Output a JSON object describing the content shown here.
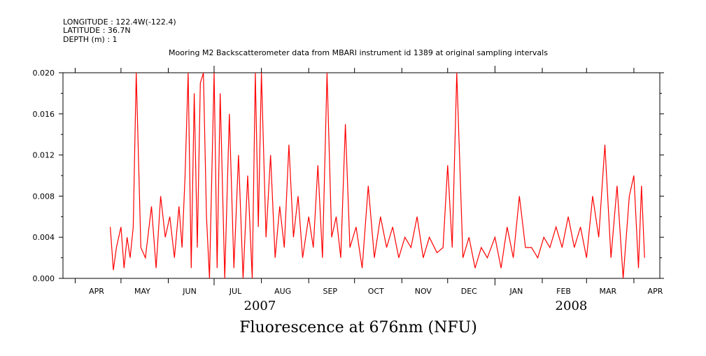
{
  "header": {
    "longitude": "LONGITUDE : 122.4W(-122.4)",
    "latitude": "LATITUDE : 36.7N",
    "depth": "DEPTH (m) : 1"
  },
  "chart_data": {
    "type": "line",
    "title": "Mooring M2 Backscatterometer data from MBARI instrument id 1389 at original sampling intervals",
    "xlabel": "Fluorescence at 676nm (NFU)",
    "ylabel": "",
    "ylim": [
      0,
      0.02
    ],
    "y_ticks": [
      "0.000",
      "0.004",
      "0.008",
      "0.012",
      "0.016",
      "0.020"
    ],
    "x_range": [
      "2007-03-24",
      "2008-04-18"
    ],
    "months": [
      "APR",
      "MAY",
      "JUN",
      "JUL",
      "AUG",
      "SEP",
      "OCT",
      "NOV",
      "DEC",
      "JAN",
      "FEB",
      "MAR",
      "APR"
    ],
    "years": [
      "2007",
      "2008"
    ],
    "grid": false,
    "legend": "none",
    "line_color": "#ff0000",
    "series": [
      {
        "x": [
          "2007-04-24",
          "2007-04-26",
          "2007-04-28",
          "2007-05-01",
          "2007-05-03",
          "2007-05-05",
          "2007-05-07",
          "2007-05-09",
          "2007-05-11",
          "2007-05-14",
          "2007-05-17",
          "2007-05-21",
          "2007-05-24",
          "2007-05-27",
          "2007-05-30",
          "2007-06-02",
          "2007-06-05",
          "2007-06-08",
          "2007-06-10",
          "2007-06-12",
          "2007-06-14",
          "2007-06-16",
          "2007-06-18",
          "2007-06-20",
          "2007-06-22",
          "2007-06-24",
          "2007-06-26",
          "2007-06-28",
          "2007-07-01",
          "2007-07-03",
          "2007-07-05",
          "2007-07-08",
          "2007-07-11",
          "2007-07-14",
          "2007-07-17",
          "2007-07-20",
          "2007-07-23",
          "2007-07-26",
          "2007-07-28",
          "2007-07-30",
          "2007-08-01",
          "2007-08-04",
          "2007-08-07",
          "2007-08-10",
          "2007-08-13",
          "2007-08-16",
          "2007-08-19",
          "2007-08-22",
          "2007-08-25",
          "2007-08-28",
          "2007-09-01",
          "2007-09-04",
          "2007-09-07",
          "2007-09-10",
          "2007-09-13",
          "2007-09-16",
          "2007-09-19",
          "2007-09-22",
          "2007-09-25",
          "2007-09-28",
          "2007-10-02",
          "2007-10-06",
          "2007-10-10",
          "2007-10-14",
          "2007-10-18",
          "2007-10-22",
          "2007-10-26",
          "2007-10-30",
          "2007-11-03",
          "2007-11-07",
          "2007-11-11",
          "2007-11-15",
          "2007-11-19",
          "2007-11-24",
          "2007-11-28",
          "2007-12-01",
          "2007-12-04",
          "2007-12-07",
          "2007-12-11",
          "2007-12-15",
          "2007-12-19",
          "2007-12-23",
          "2007-12-27",
          "2008-01-01",
          "2008-01-05",
          "2008-01-09",
          "2008-01-13",
          "2008-01-17",
          "2008-01-21",
          "2008-01-25",
          "2008-01-29",
          "2008-02-02",
          "2008-02-06",
          "2008-02-10",
          "2008-02-14",
          "2008-02-18",
          "2008-02-22",
          "2008-02-26",
          "2008-03-01",
          "2008-03-05",
          "2008-03-09",
          "2008-03-13",
          "2008-03-17",
          "2008-03-21",
          "2008-03-25",
          "2008-03-29",
          "2008-04-01",
          "2008-04-04",
          "2008-04-06",
          "2008-04-08"
        ],
        "y": [
          0.005,
          0.0008,
          0.003,
          0.005,
          0.001,
          0.004,
          0.002,
          0.005,
          0.02,
          0.003,
          0.002,
          0.007,
          0.001,
          0.008,
          0.004,
          0.006,
          0.002,
          0.007,
          0.003,
          0.01,
          0.02,
          0.001,
          0.018,
          0.003,
          0.019,
          0.02,
          0.006,
          0.0,
          0.02,
          0.001,
          0.018,
          0.0,
          0.016,
          0.001,
          0.012,
          0.0,
          0.01,
          0.0,
          0.02,
          0.005,
          0.02,
          0.004,
          0.012,
          0.002,
          0.007,
          0.003,
          0.013,
          0.004,
          0.008,
          0.002,
          0.006,
          0.003,
          0.011,
          0.002,
          0.02,
          0.004,
          0.006,
          0.002,
          0.015,
          0.003,
          0.005,
          0.001,
          0.009,
          0.002,
          0.006,
          0.003,
          0.005,
          0.002,
          0.004,
          0.003,
          0.006,
          0.002,
          0.004,
          0.0025,
          0.003,
          0.011,
          0.003,
          0.02,
          0.002,
          0.004,
          0.001,
          0.003,
          0.002,
          0.004,
          0.001,
          0.005,
          0.002,
          0.008,
          0.003,
          0.003,
          0.002,
          0.004,
          0.003,
          0.005,
          0.003,
          0.006,
          0.003,
          0.005,
          0.002,
          0.008,
          0.004,
          0.013,
          0.002,
          0.009,
          0.0,
          0.008,
          0.01,
          0.001,
          0.009,
          0.002
        ]
      }
    ]
  }
}
